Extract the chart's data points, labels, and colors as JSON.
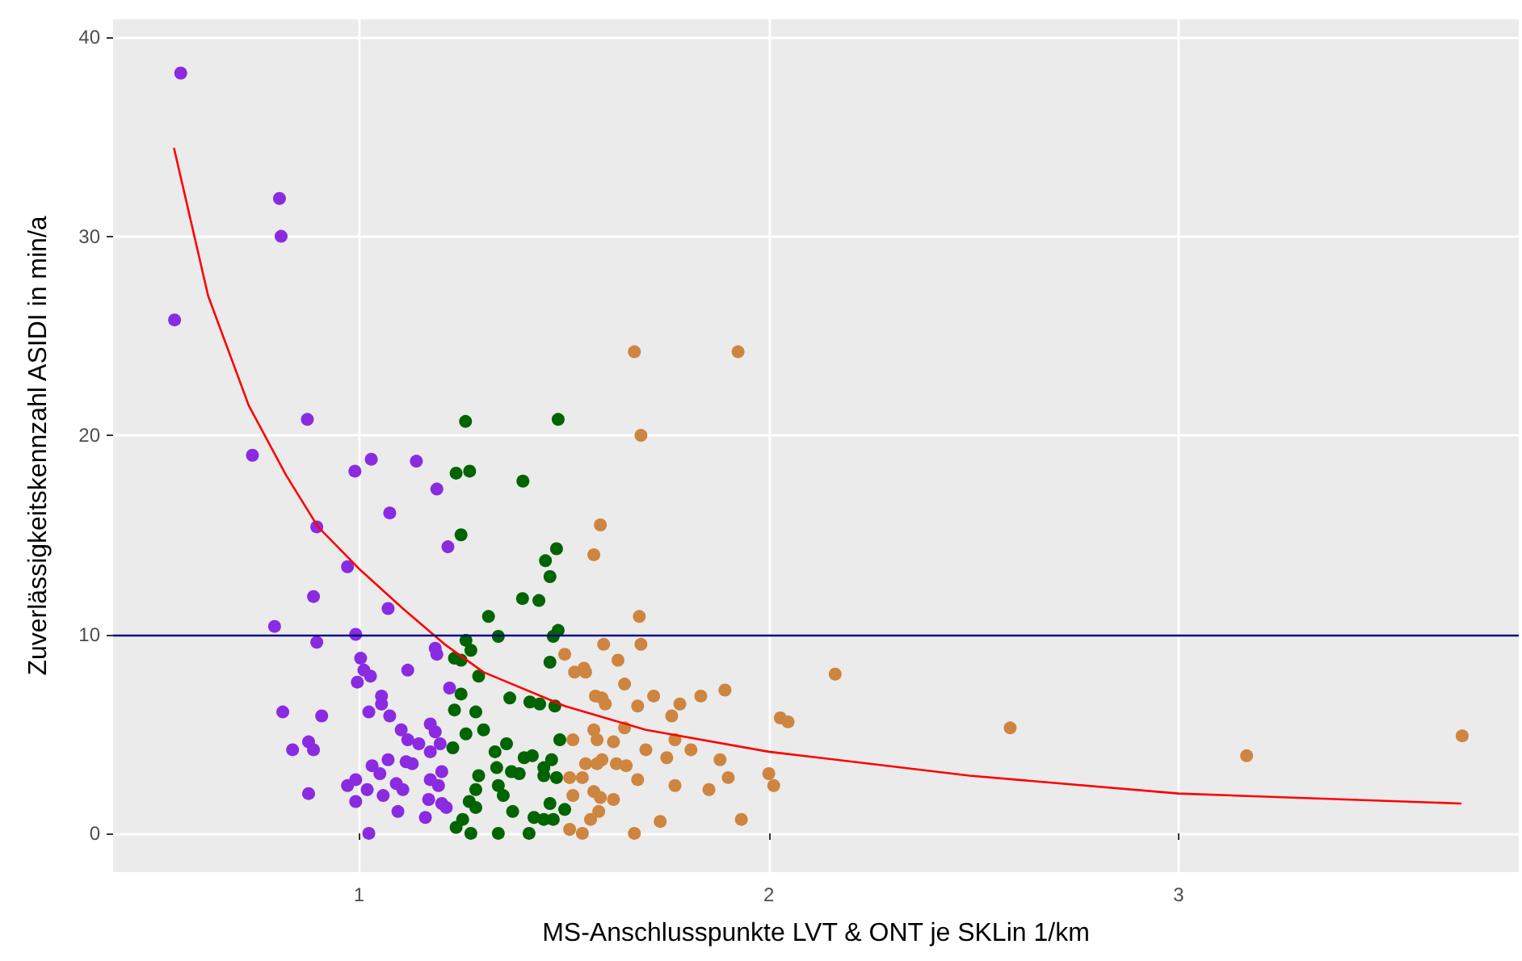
{
  "chart_data": {
    "type": "scatter",
    "xlabel": "MS-Anschlusspunkte LVT & ONT je SKLin 1/km",
    "ylabel": "Zuverlässigkeitskennzahl ASIDI in min/a",
    "xlim": [
      0.4,
      3.83
    ],
    "ylim": [
      -1.95,
      40.9
    ],
    "xticks": [
      1,
      2,
      3
    ],
    "yticks": [
      0,
      10,
      20,
      30,
      40
    ],
    "grid": true,
    "marker": "circle",
    "ref_lines": [
      {
        "axis": "y",
        "value": 10,
        "color": "#000080",
        "line_style": "solid"
      }
    ],
    "series": [
      {
        "color": "#8a2be2",
        "x": [
          0.565,
          0.806,
          0.81,
          0.55,
          0.874,
          0.74,
          0.99,
          1.03,
          1.14,
          1.19,
          1.075,
          1.217,
          0.897,
          0.972,
          0.889,
          1.071,
          0.794,
          0.992,
          0.897,
          1.186,
          1.19,
          1.004,
          1.012,
          1.028,
          1.119,
          0.996,
          1.221,
          1.055,
          1.055,
          0.814,
          0.909,
          1.024,
          1.075,
          1.174,
          1.103,
          1.186,
          1.119,
          1.146,
          1.198,
          0.877,
          0.838,
          0.889,
          1.174,
          1.071,
          1.115,
          1.13,
          1.202,
          1.032,
          1.051,
          0.992,
          0.972,
          1.091,
          1.107,
          1.174,
          1.194,
          1.02,
          1.059,
          0.877,
          1.17,
          1.202,
          1.213,
          0.992,
          1.095,
          1.162,
          1.024
        ],
        "values": [
          38.2,
          31.9,
          30.0,
          25.8,
          20.8,
          19.0,
          18.2,
          18.8,
          18.7,
          17.3,
          16.1,
          14.4,
          15.4,
          13.4,
          11.9,
          11.3,
          10.4,
          10.0,
          9.6,
          9.3,
          9.0,
          8.8,
          8.2,
          7.9,
          8.2,
          7.6,
          7.3,
          6.9,
          6.5,
          6.1,
          5.9,
          6.1,
          5.9,
          5.5,
          5.2,
          5.1,
          4.7,
          4.5,
          4.5,
          4.6,
          4.2,
          4.2,
          4.1,
          3.7,
          3.6,
          3.5,
          3.1,
          3.4,
          3.0,
          2.7,
          2.4,
          2.5,
          2.2,
          2.7,
          2.4,
          2.2,
          1.9,
          2.0,
          1.7,
          1.5,
          1.3,
          1.6,
          1.1,
          0.8,
          0.0
        ]
      },
      {
        "color": "#006400",
        "x": [
          1.26,
          1.486,
          1.237,
          1.27,
          1.4,
          1.249,
          1.482,
          1.455,
          1.466,
          1.399,
          1.439,
          1.316,
          1.261,
          1.34,
          1.486,
          1.474,
          1.273,
          1.233,
          1.249,
          1.466,
          1.292,
          1.249,
          1.368,
          1.417,
          1.441,
          1.478,
          1.233,
          1.285,
          1.304,
          1.261,
          1.49,
          1.36,
          1.229,
          1.332,
          1.403,
          1.423,
          1.47,
          1.336,
          1.372,
          1.391,
          1.451,
          1.292,
          1.451,
          1.482,
          1.285,
          1.34,
          1.352,
          1.269,
          1.285,
          1.375,
          1.466,
          1.502,
          1.253,
          1.237,
          1.427,
          1.451,
          1.474,
          1.273,
          1.34,
          1.415
        ],
        "values": [
          20.7,
          20.8,
          18.1,
          18.2,
          17.7,
          15.0,
          14.3,
          13.7,
          12.9,
          11.8,
          11.7,
          10.9,
          9.7,
          9.9,
          10.2,
          9.9,
          9.2,
          8.8,
          8.7,
          8.6,
          7.9,
          7.0,
          6.8,
          6.6,
          6.5,
          6.4,
          6.2,
          6.1,
          5.2,
          5.0,
          4.7,
          4.5,
          4.3,
          4.1,
          3.8,
          3.9,
          3.7,
          3.3,
          3.1,
          3.0,
          3.3,
          2.9,
          2.9,
          2.8,
          2.2,
          2.4,
          1.9,
          1.6,
          1.3,
          1.1,
          1.5,
          1.2,
          0.7,
          0.3,
          0.8,
          0.7,
          0.7,
          0.0,
          0.0,
          0.0
        ]
      },
      {
        "color": "#cd853f",
        "x": [
          1.672,
          1.925,
          1.688,
          1.589,
          1.573,
          1.684,
          1.597,
          1.688,
          1.502,
          1.632,
          1.526,
          1.549,
          1.553,
          1.648,
          1.577,
          1.593,
          1.601,
          1.68,
          1.719,
          1.783,
          1.834,
          1.893,
          1.763,
          2.028,
          2.047,
          1.648,
          1.573,
          1.771,
          1.581,
          1.522,
          1.621,
          1.81,
          1.7,
          1.751,
          1.881,
          1.553,
          1.593,
          1.581,
          1.628,
          1.652,
          1.514,
          1.545,
          1.68,
          1.771,
          1.901,
          2.0,
          2.012,
          1.854,
          1.573,
          1.589,
          1.522,
          1.621,
          1.585,
          1.565,
          1.735,
          1.933,
          1.514,
          1.545,
          1.672,
          2.162,
          2.589,
          3.166,
          3.692
        ],
        "values": [
          24.2,
          24.2,
          20.0,
          15.5,
          14.0,
          10.9,
          9.5,
          9.5,
          9.0,
          8.7,
          8.1,
          8.3,
          8.1,
          7.5,
          6.9,
          6.8,
          6.5,
          6.4,
          6.9,
          6.5,
          6.9,
          7.2,
          5.9,
          5.8,
          5.6,
          5.3,
          5.2,
          4.7,
          4.7,
          4.7,
          4.6,
          4.2,
          4.2,
          3.8,
          3.7,
          3.5,
          3.7,
          3.5,
          3.5,
          3.4,
          2.8,
          2.8,
          2.7,
          2.4,
          2.8,
          3.0,
          2.4,
          2.2,
          2.1,
          1.8,
          1.9,
          1.7,
          1.1,
          0.7,
          0.6,
          0.7,
          0.2,
          0.0,
          0.0,
          8.0,
          5.3,
          3.9,
          4.9
        ]
      },
      {
        "type": "line",
        "color": "#ff0000",
        "marker": "none",
        "line_style": "solid",
        "x": [
          0.549,
          0.632,
          0.731,
          0.822,
          0.9,
          1.0,
          1.107,
          1.209,
          1.304,
          1.502,
          1.7,
          2.0,
          2.49,
          3.0,
          3.688
        ],
        "values": [
          34.4,
          27.0,
          21.5,
          18.0,
          15.4,
          13.3,
          11.3,
          9.5,
          8.1,
          6.4,
          5.2,
          4.1,
          2.9,
          2.0,
          1.5
        ]
      }
    ]
  }
}
